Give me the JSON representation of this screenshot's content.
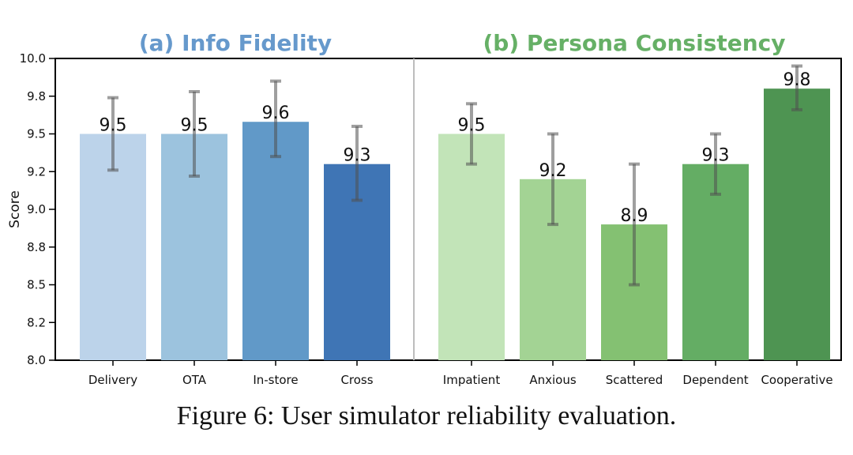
{
  "chart_data": {
    "type": "bar",
    "ylabel": "Score",
    "ylim": [
      8.0,
      10.0
    ],
    "yticks": [
      "8.0",
      "8.2",
      "8.5",
      "8.8",
      "9.0",
      "9.2",
      "9.5",
      "9.8",
      "10.0"
    ],
    "ytick_values": [
      8.0,
      8.25,
      8.5,
      8.75,
      9.0,
      9.25,
      9.5,
      9.75,
      10.0
    ],
    "panels": [
      {
        "title": "(a) Info Fidelity",
        "title_color": "#6699cc",
        "categories": [
          "Delivery",
          "OTA",
          "In-store",
          "Cross"
        ],
        "values": [
          9.5,
          9.5,
          9.58,
          9.3
        ],
        "labels": [
          "9.5",
          "9.5",
          "9.6",
          "9.3"
        ],
        "err_low": [
          9.26,
          9.22,
          9.35,
          9.06
        ],
        "err_high": [
          9.74,
          9.78,
          9.85,
          9.55
        ],
        "colors": [
          "#bcd3ea",
          "#9cc3de",
          "#6199c8",
          "#3f75b5"
        ]
      },
      {
        "title": "(b) Persona Consistency",
        "title_color": "#66b066",
        "categories": [
          "Impatient",
          "Anxious",
          "Scattered",
          "Dependent",
          "Cooperative"
        ],
        "values": [
          9.5,
          9.2,
          8.9,
          9.3,
          9.8
        ],
        "labels": [
          "9.5",
          "9.2",
          "8.9",
          "9.3",
          "9.8"
        ],
        "err_low": [
          9.3,
          8.9,
          8.5,
          9.1,
          9.66
        ],
        "err_high": [
          9.7,
          9.5,
          9.3,
          9.5,
          9.95
        ],
        "colors": [
          "#c2e4b8",
          "#a3d394",
          "#84c172",
          "#64ad64",
          "#4e9452"
        ]
      }
    ]
  },
  "caption": "Figure 6: User simulator reliability evaluation."
}
